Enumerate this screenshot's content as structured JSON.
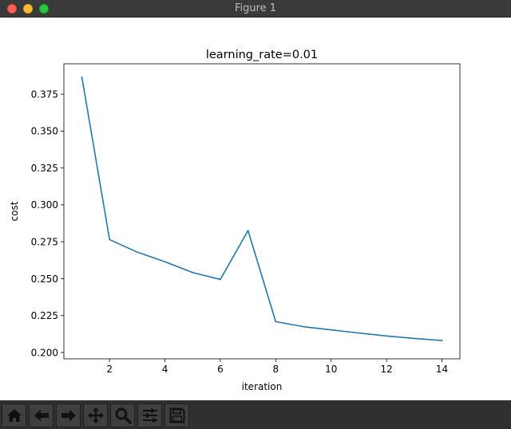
{
  "window": {
    "title": "Figure 1"
  },
  "toolbar": {
    "buttons": [
      {
        "icon": "home-icon"
      },
      {
        "icon": "back-arrow-icon"
      },
      {
        "icon": "forward-arrow-icon"
      },
      {
        "icon": "pan-move-icon"
      },
      {
        "icon": "zoom-magnifier-icon"
      },
      {
        "icon": "subplots-sliders-icon"
      },
      {
        "icon": "save-floppy-icon"
      }
    ]
  },
  "colors": {
    "line": "#1f77b4",
    "titlebar": "#3a3a3a",
    "toolbar": "#303030"
  },
  "chart_data": {
    "type": "line",
    "title": "learning_rate=0.01",
    "xlabel": "iteration",
    "ylabel": "cost",
    "xlim": [
      0.35,
      14.65
    ],
    "ylim": [
      0.1957,
      0.3956
    ],
    "xticks": [
      2,
      4,
      6,
      8,
      10,
      12,
      14
    ],
    "xtick_labels": [
      "2",
      "4",
      "6",
      "8",
      "10",
      "12",
      "14"
    ],
    "yticks": [
      0.2,
      0.225,
      0.25,
      0.275,
      0.3,
      0.325,
      0.35,
      0.375
    ],
    "ytick_labels": [
      "0.200",
      "0.225",
      "0.250",
      "0.275",
      "0.300",
      "0.325",
      "0.350",
      "0.375"
    ],
    "grid": false,
    "series": [
      {
        "x": [
          1,
          2,
          3,
          4,
          5,
          6,
          7,
          8,
          9,
          10,
          11,
          12,
          13,
          14
        ],
        "values": [
          0.3866,
          0.2765,
          0.268,
          0.2615,
          0.2542,
          0.2495,
          0.2826,
          0.2209,
          0.2175,
          0.2153,
          0.2132,
          0.2112,
          0.2095,
          0.2081
        ]
      }
    ]
  }
}
